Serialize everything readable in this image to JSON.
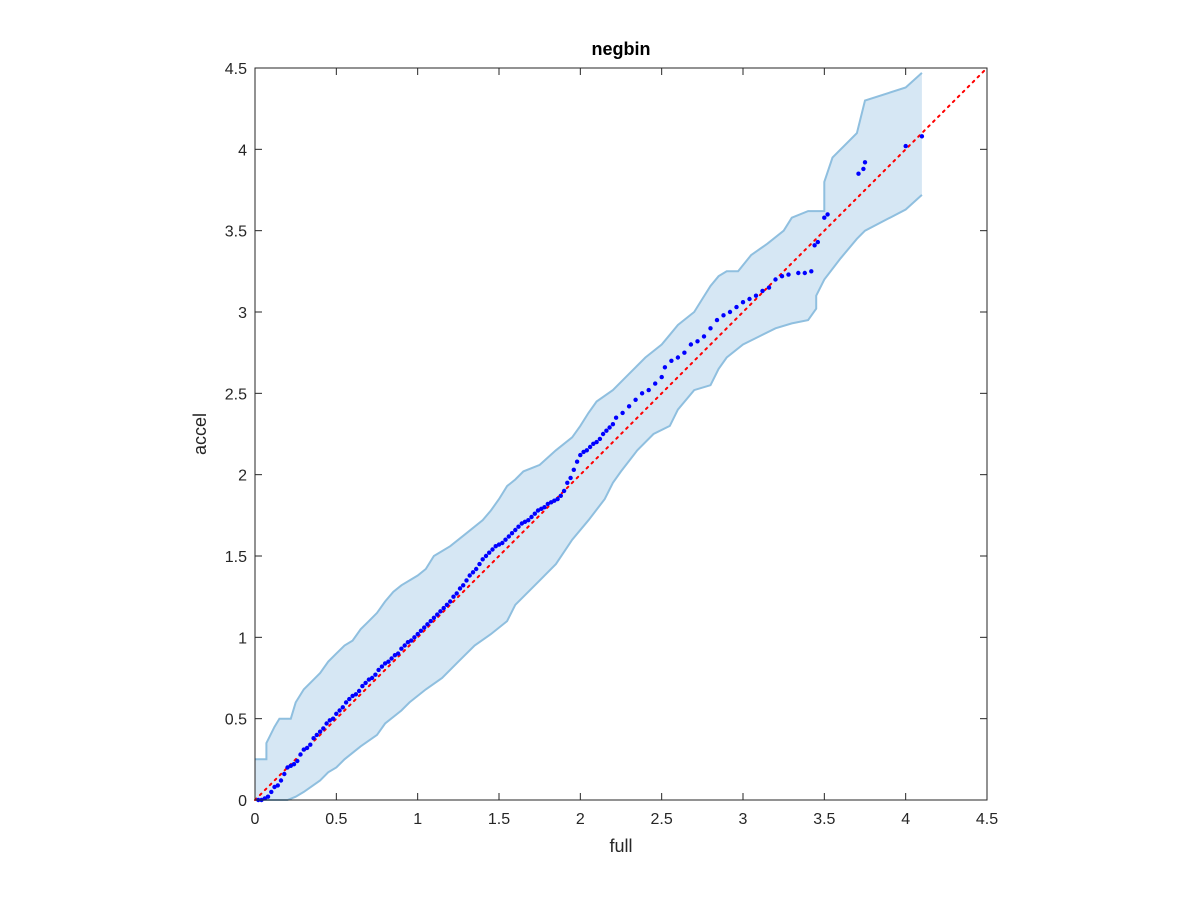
{
  "chart_data": {
    "type": "scatter",
    "title": "negbin",
    "xlabel": "full",
    "ylabel": "accel",
    "xlim": [
      0,
      4.5
    ],
    "ylim": [
      0,
      4.5
    ],
    "xticks": [
      "0",
      "0.5",
      "1",
      "1.5",
      "2",
      "2.5",
      "3",
      "3.5",
      "4",
      "4.5"
    ],
    "yticks": [
      "0",
      "0.5",
      "1",
      "1.5",
      "2",
      "2.5",
      "3",
      "3.5",
      "4",
      "4.5"
    ],
    "grid": false,
    "legend": "none",
    "reference_line": {
      "style": "dotted",
      "color": "#ff0000",
      "x": [
        0,
        4.5
      ],
      "y": [
        0,
        4.5
      ]
    },
    "band": {
      "color": "#d6e7f4",
      "edge_color": "#8fbfdf",
      "upper": [
        [
          0.0,
          0.25
        ],
        [
          0.07,
          0.25
        ],
        [
          0.07,
          0.35
        ],
        [
          0.12,
          0.45
        ],
        [
          0.15,
          0.5
        ],
        [
          0.22,
          0.5
        ],
        [
          0.25,
          0.6
        ],
        [
          0.3,
          0.68
        ],
        [
          0.35,
          0.73
        ],
        [
          0.4,
          0.78
        ],
        [
          0.45,
          0.85
        ],
        [
          0.5,
          0.9
        ],
        [
          0.55,
          0.95
        ],
        [
          0.6,
          0.98
        ],
        [
          0.65,
          1.05
        ],
        [
          0.7,
          1.1
        ],
        [
          0.75,
          1.15
        ],
        [
          0.8,
          1.22
        ],
        [
          0.85,
          1.28
        ],
        [
          0.9,
          1.32
        ],
        [
          1.0,
          1.38
        ],
        [
          1.05,
          1.42
        ],
        [
          1.1,
          1.5
        ],
        [
          1.2,
          1.56
        ],
        [
          1.3,
          1.64
        ],
        [
          1.4,
          1.72
        ],
        [
          1.45,
          1.78
        ],
        [
          1.5,
          1.85
        ],
        [
          1.55,
          1.93
        ],
        [
          1.6,
          1.97
        ],
        [
          1.65,
          2.02
        ],
        [
          1.75,
          2.06
        ],
        [
          1.85,
          2.15
        ],
        [
          1.95,
          2.23
        ],
        [
          2.0,
          2.3
        ],
        [
          2.05,
          2.38
        ],
        [
          2.1,
          2.45
        ],
        [
          2.2,
          2.52
        ],
        [
          2.3,
          2.62
        ],
        [
          2.4,
          2.72
        ],
        [
          2.5,
          2.8
        ],
        [
          2.55,
          2.86
        ],
        [
          2.6,
          2.92
        ],
        [
          2.7,
          3.0
        ],
        [
          2.75,
          3.08
        ],
        [
          2.8,
          3.16
        ],
        [
          2.85,
          3.22
        ],
        [
          2.9,
          3.25
        ],
        [
          2.97,
          3.25
        ],
        [
          3.05,
          3.35
        ],
        [
          3.15,
          3.42
        ],
        [
          3.25,
          3.5
        ],
        [
          3.3,
          3.58
        ],
        [
          3.4,
          3.62
        ],
        [
          3.5,
          3.62
        ],
        [
          3.5,
          3.8
        ],
        [
          3.55,
          3.95
        ],
        [
          3.7,
          4.1
        ],
        [
          3.75,
          4.3
        ],
        [
          4.0,
          4.38
        ],
        [
          4.1,
          4.47
        ]
      ],
      "lower": [
        [
          0.0,
          0.0
        ],
        [
          0.2,
          0.0
        ],
        [
          0.25,
          0.02
        ],
        [
          0.3,
          0.05
        ],
        [
          0.4,
          0.12
        ],
        [
          0.45,
          0.17
        ],
        [
          0.5,
          0.2
        ],
        [
          0.55,
          0.25
        ],
        [
          0.65,
          0.33
        ],
        [
          0.75,
          0.4
        ],
        [
          0.8,
          0.47
        ],
        [
          0.9,
          0.55
        ],
        [
          0.95,
          0.6
        ],
        [
          1.05,
          0.68
        ],
        [
          1.15,
          0.75
        ],
        [
          1.25,
          0.85
        ],
        [
          1.35,
          0.95
        ],
        [
          1.45,
          1.02
        ],
        [
          1.55,
          1.1
        ],
        [
          1.6,
          1.2
        ],
        [
          1.75,
          1.35
        ],
        [
          1.85,
          1.45
        ],
        [
          1.95,
          1.6
        ],
        [
          2.05,
          1.72
        ],
        [
          2.15,
          1.85
        ],
        [
          2.2,
          1.95
        ],
        [
          2.25,
          2.02
        ],
        [
          2.35,
          2.15
        ],
        [
          2.45,
          2.25
        ],
        [
          2.55,
          2.3
        ],
        [
          2.6,
          2.4
        ],
        [
          2.7,
          2.52
        ],
        [
          2.8,
          2.55
        ],
        [
          2.85,
          2.65
        ],
        [
          2.9,
          2.72
        ],
        [
          3.0,
          2.8
        ],
        [
          3.1,
          2.85
        ],
        [
          3.2,
          2.9
        ],
        [
          3.3,
          2.93
        ],
        [
          3.4,
          2.95
        ],
        [
          3.45,
          3.02
        ],
        [
          3.45,
          3.1
        ],
        [
          3.5,
          3.2
        ],
        [
          3.6,
          3.33
        ],
        [
          3.7,
          3.45
        ],
        [
          3.75,
          3.5
        ],
        [
          4.0,
          3.63
        ],
        [
          4.1,
          3.72
        ]
      ]
    },
    "series": [
      {
        "color": "#0000ff",
        "x": [
          0.02,
          0.04,
          0.06,
          0.08,
          0.1,
          0.12,
          0.14,
          0.16,
          0.18,
          0.2,
          0.22,
          0.24,
          0.26,
          0.28,
          0.3,
          0.32,
          0.34,
          0.36,
          0.38,
          0.4,
          0.42,
          0.44,
          0.46,
          0.48,
          0.5,
          0.52,
          0.54,
          0.56,
          0.58,
          0.6,
          0.62,
          0.64,
          0.66,
          0.68,
          0.7,
          0.72,
          0.74,
          0.76,
          0.78,
          0.8,
          0.82,
          0.84,
          0.86,
          0.88,
          0.9,
          0.92,
          0.94,
          0.96,
          0.98,
          1.0,
          1.02,
          1.04,
          1.06,
          1.08,
          1.1,
          1.12,
          1.14,
          1.16,
          1.18,
          1.2,
          1.22,
          1.24,
          1.26,
          1.28,
          1.3,
          1.32,
          1.34,
          1.36,
          1.38,
          1.4,
          1.42,
          1.44,
          1.46,
          1.48,
          1.5,
          1.52,
          1.54,
          1.56,
          1.58,
          1.6,
          1.62,
          1.64,
          1.66,
          1.68,
          1.7,
          1.72,
          1.74,
          1.76,
          1.78,
          1.8,
          1.82,
          1.84,
          1.86,
          1.88,
          1.9,
          1.92,
          1.94,
          1.96,
          1.98,
          2.0,
          2.02,
          2.04,
          2.06,
          2.08,
          2.1,
          2.12,
          2.14,
          2.16,
          2.18,
          2.2,
          2.22,
          2.26,
          2.3,
          2.34,
          2.38,
          2.42,
          2.46,
          2.5,
          2.52,
          2.56,
          2.6,
          2.64,
          2.68,
          2.72,
          2.76,
          2.8,
          2.84,
          2.88,
          2.92,
          2.96,
          3.0,
          3.04,
          3.08,
          3.12,
          3.16,
          3.2,
          3.24,
          3.28,
          3.34,
          3.38,
          3.42,
          3.44,
          3.46,
          3.5,
          3.52,
          3.71,
          3.74,
          3.75,
          4.0,
          4.1
        ],
        "y": [
          0.0,
          0.0,
          0.01,
          0.02,
          0.05,
          0.08,
          0.09,
          0.12,
          0.16,
          0.2,
          0.21,
          0.22,
          0.24,
          0.28,
          0.31,
          0.32,
          0.34,
          0.38,
          0.4,
          0.42,
          0.44,
          0.47,
          0.49,
          0.5,
          0.53,
          0.55,
          0.57,
          0.6,
          0.62,
          0.64,
          0.65,
          0.67,
          0.7,
          0.72,
          0.74,
          0.75,
          0.77,
          0.8,
          0.82,
          0.84,
          0.85,
          0.87,
          0.89,
          0.9,
          0.93,
          0.95,
          0.97,
          0.98,
          1.0,
          1.02,
          1.04,
          1.06,
          1.08,
          1.1,
          1.12,
          1.14,
          1.16,
          1.18,
          1.2,
          1.22,
          1.25,
          1.27,
          1.3,
          1.32,
          1.35,
          1.38,
          1.4,
          1.42,
          1.45,
          1.48,
          1.5,
          1.52,
          1.54,
          1.56,
          1.57,
          1.58,
          1.6,
          1.62,
          1.64,
          1.66,
          1.68,
          1.7,
          1.71,
          1.72,
          1.74,
          1.76,
          1.78,
          1.79,
          1.8,
          1.82,
          1.83,
          1.84,
          1.85,
          1.87,
          1.9,
          1.95,
          1.98,
          2.03,
          2.08,
          2.12,
          2.14,
          2.15,
          2.17,
          2.19,
          2.2,
          2.22,
          2.25,
          2.27,
          2.29,
          2.31,
          2.35,
          2.38,
          2.42,
          2.46,
          2.5,
          2.52,
          2.56,
          2.6,
          2.66,
          2.7,
          2.72,
          2.75,
          2.8,
          2.82,
          2.85,
          2.9,
          2.95,
          2.98,
          3.0,
          3.03,
          3.06,
          3.08,
          3.1,
          3.13,
          3.15,
          3.2,
          3.22,
          3.23,
          3.24,
          3.24,
          3.25,
          3.41,
          3.43,
          3.58,
          3.6,
          3.85,
          3.88,
          3.92,
          4.02,
          4.08
        ]
      }
    ]
  }
}
